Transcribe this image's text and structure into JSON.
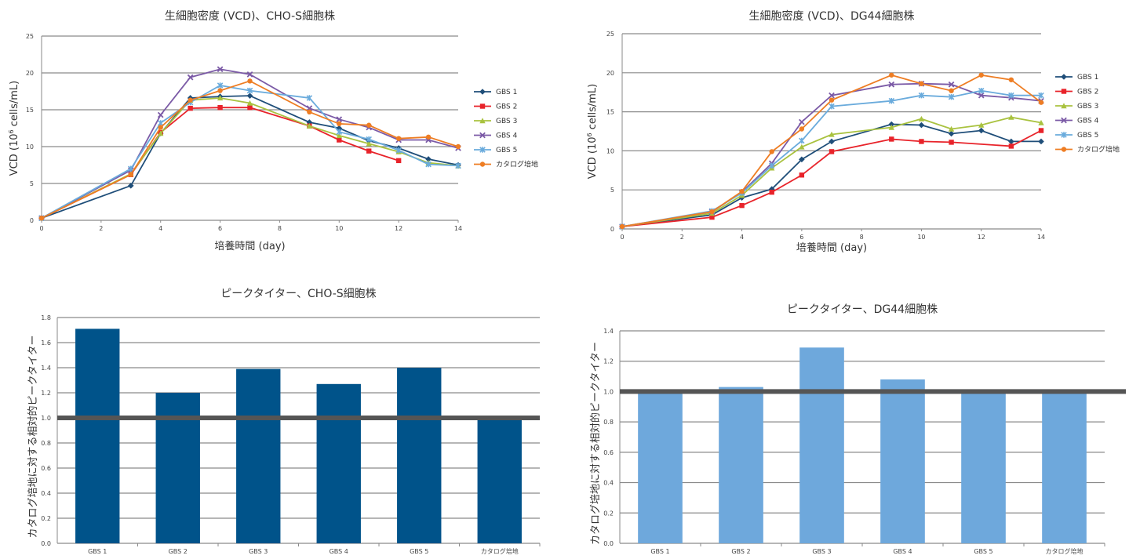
{
  "chart_data": [
    {
      "type": "line",
      "title": "生細胞密度 (VCD)、CHO-S細胞株",
      "xlabel": "培養時間 (day)",
      "ylabel_prefix": "VCD (10",
      "ylabel_superscript": "6",
      "ylabel_suffix": " cells/mL)",
      "xlim": [
        0,
        14
      ],
      "ylim": [
        0,
        25
      ],
      "x_ticks": [
        "0",
        "2",
        "4",
        "6",
        "8",
        "10",
        "12",
        "14"
      ],
      "y_ticks": [
        "0",
        "5",
        "10",
        "15",
        "20",
        "25"
      ],
      "grid": true,
      "legend_position": "right",
      "series": [
        {
          "name": "GBS 1",
          "color": "#1f4e79",
          "marker": "diamond",
          "x": [
            0,
            3,
            4,
            5,
            6,
            7,
            9,
            10,
            11,
            12,
            13,
            14
          ],
          "y": [
            0.3,
            4.7,
            11.8,
            16.6,
            16.8,
            16.9,
            13.3,
            12.5,
            10.8,
            9.8,
            8.3,
            7.5
          ]
        },
        {
          "name": "GBS 2",
          "color": "#e8232a",
          "marker": "square",
          "x": [
            0,
            3,
            4,
            5,
            6,
            7,
            9,
            10,
            11,
            12
          ],
          "y": [
            0.3,
            6.2,
            11.9,
            15.2,
            15.3,
            15.3,
            12.8,
            10.9,
            9.4,
            8.1
          ]
        },
        {
          "name": "GBS 3",
          "color": "#a9c23f",
          "marker": "triangle",
          "x": [
            0,
            3,
            4,
            5,
            6,
            7,
            9,
            10,
            11,
            12,
            13,
            14
          ],
          "y": [
            0.3,
            6.3,
            11.8,
            16.3,
            16.6,
            15.9,
            12.8,
            11.5,
            10.4,
            9.3,
            7.8,
            7.4
          ]
        },
        {
          "name": "GBS 4",
          "color": "#7b5aa6",
          "marker": "x",
          "x": [
            0,
            3,
            4,
            5,
            6,
            7,
            9,
            10,
            11,
            12,
            13,
            14
          ],
          "y": [
            0.3,
            6.8,
            14.3,
            19.4,
            20.5,
            19.8,
            15.2,
            13.7,
            12.6,
            10.9,
            10.9,
            9.8
          ]
        },
        {
          "name": "GBS 5",
          "color": "#6aabdc",
          "marker": "asterisk",
          "x": [
            0,
            3,
            4,
            5,
            6,
            7,
            9,
            10,
            11,
            12,
            13,
            14
          ],
          "y": [
            0.3,
            7.0,
            13.2,
            16.0,
            18.3,
            17.6,
            16.6,
            12.0,
            11.0,
            9.5,
            7.6,
            7.4
          ]
        },
        {
          "name": "カタログ培地",
          "color": "#ee7d23",
          "marker": "circle",
          "x": [
            0,
            3,
            4,
            5,
            6,
            7,
            9,
            10,
            11,
            12,
            13,
            14
          ],
          "y": [
            0.3,
            6.2,
            12.6,
            16.3,
            17.6,
            18.9,
            14.7,
            13.1,
            12.9,
            11.1,
            11.3,
            10.0
          ]
        }
      ]
    },
    {
      "type": "line",
      "title": "生細胞密度 (VCD)、DG44細胞株",
      "xlabel": "培養時間 (day)",
      "ylabel_prefix": "VCD (10",
      "ylabel_superscript": "6",
      "ylabel_suffix": " cells/mL)",
      "xlim": [
        0,
        14
      ],
      "ylim": [
        0,
        25
      ],
      "x_ticks": [
        "0",
        "2",
        "4",
        "6",
        "8",
        "10",
        "12",
        "14"
      ],
      "y_ticks": [
        "0",
        "5",
        "10",
        "15",
        "20",
        "25"
      ],
      "grid": true,
      "legend_position": "right",
      "series": [
        {
          "name": "GBS 1",
          "color": "#1f4e79",
          "marker": "diamond",
          "x": [
            0,
            3,
            4,
            5,
            6,
            7,
            9,
            10,
            11,
            12,
            13,
            14
          ],
          "y": [
            0.3,
            1.8,
            4.0,
            5.1,
            8.9,
            11.2,
            13.4,
            13.3,
            12.2,
            12.6,
            11.2,
            11.2
          ]
        },
        {
          "name": "GBS 2",
          "color": "#e8232a",
          "marker": "square",
          "x": [
            0,
            3,
            4,
            5,
            6,
            7,
            9,
            10,
            11,
            13,
            14
          ],
          "y": [
            0.3,
            1.5,
            3.0,
            4.7,
            6.9,
            9.9,
            11.5,
            11.2,
            11.1,
            10.6,
            12.6
          ]
        },
        {
          "name": "GBS 3",
          "color": "#a9c23f",
          "marker": "triangle",
          "x": [
            0,
            3,
            4,
            5,
            6,
            7,
            9,
            10,
            11,
            12,
            13,
            14
          ],
          "y": [
            0.3,
            2.0,
            4.3,
            7.8,
            10.5,
            12.1,
            13.0,
            14.1,
            12.8,
            13.3,
            14.3,
            13.6
          ]
        },
        {
          "name": "GBS 4",
          "color": "#7b5aa6",
          "marker": "x",
          "x": [
            0,
            3,
            4,
            5,
            6,
            7,
            9,
            10,
            11,
            12,
            13,
            14
          ],
          "y": [
            0.3,
            2.2,
            4.7,
            8.4,
            13.7,
            17.1,
            18.5,
            18.6,
            18.5,
            17.1,
            16.8,
            16.4
          ]
        },
        {
          "name": "GBS 5",
          "color": "#6aabdc",
          "marker": "asterisk",
          "x": [
            0,
            3,
            4,
            5,
            6,
            7,
            9,
            10,
            11,
            12,
            13,
            14
          ],
          "y": [
            0.3,
            2.3,
            4.6,
            8.1,
            11.3,
            15.7,
            16.4,
            17.1,
            16.9,
            17.7,
            17.1,
            17.1
          ]
        },
        {
          "name": "カタログ培地",
          "color": "#ee7d23",
          "marker": "circle",
          "x": [
            0,
            3,
            4,
            5,
            6,
            7,
            9,
            10,
            11,
            12,
            13,
            14
          ],
          "y": [
            0.3,
            2.2,
            4.8,
            9.9,
            12.8,
            16.5,
            19.7,
            18.6,
            17.7,
            19.7,
            19.1,
            16.2
          ]
        }
      ]
    },
    {
      "type": "bar",
      "title": "ピークタイター、CHO-S細胞株",
      "ylabel": "カタログ培地に対する相対的ピークタイター",
      "categories": [
        "GBS 1",
        "GBS 2",
        "GBS 3",
        "GBS 4",
        "GBS 5",
        "カタログ培地"
      ],
      "values": [
        1.71,
        1.2,
        1.39,
        1.27,
        1.4,
        1.0
      ],
      "ylim": [
        0,
        1.8
      ],
      "y_ticks": [
        "0.0",
        "0.2",
        "0.4",
        "0.6",
        "0.8",
        "1.0",
        "1.2",
        "1.4",
        "1.6",
        "1.8"
      ],
      "reference_line": 1.0,
      "bar_color": "#00538a",
      "reference_color": "#555555",
      "grid": true
    },
    {
      "type": "bar",
      "title": "ピークタイター、DG44細胞株",
      "ylabel": "カタログ培地に対する相対的ピークタイター",
      "categories": [
        "GBS 1",
        "GBS 2",
        "GBS 3",
        "GBS 4",
        "GBS 5",
        "カタログ培地"
      ],
      "values": [
        0.99,
        1.03,
        1.29,
        1.08,
        0.99,
        1.0
      ],
      "ylim": [
        0,
        1.4
      ],
      "y_ticks": [
        "0.0",
        "0.2",
        "0.4",
        "0.6",
        "0.8",
        "1.0",
        "1.2",
        "1.4"
      ],
      "reference_line": 1.0,
      "bar_color": "#6ea8dc",
      "reference_color": "#555555",
      "grid": true
    }
  ]
}
